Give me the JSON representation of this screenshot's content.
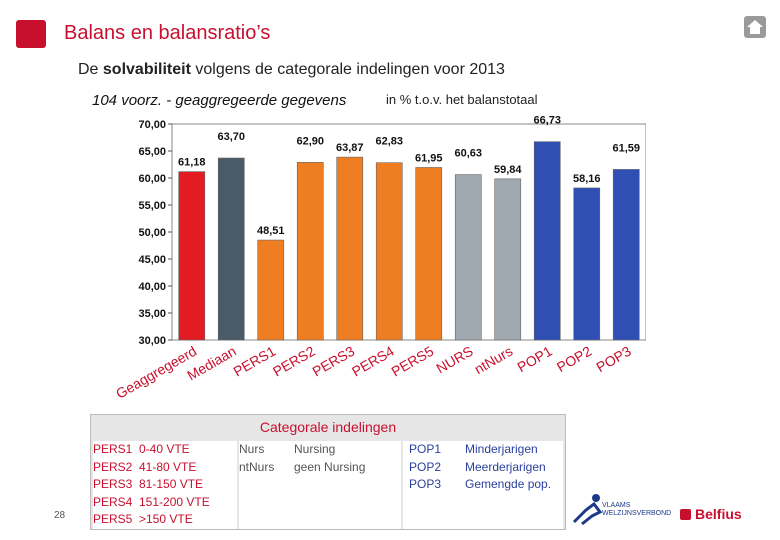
{
  "header": {
    "title": "Balans en balansratio’s",
    "subtitle_prefix": "De ",
    "subtitle_bold": "solvabiliteit",
    "subtitle_suffix": " volgens de categorale indelingen voor 2013"
  },
  "chart_data": {
    "type": "bar",
    "title": "104 voorz. - geaggregeerde gegevens",
    "unit_note": "in % t.o.v. het balanstotaal",
    "categories": [
      "Geaggregeerd",
      "Mediaan",
      "PERS1",
      "PERS2",
      "PERS3",
      "PERS4",
      "PERS5",
      "NURS",
      "ntNurs",
      "POP1",
      "POP2",
      "POP3"
    ],
    "values": [
      61.18,
      63.7,
      48.51,
      62.9,
      63.87,
      62.83,
      61.95,
      60.63,
      59.84,
      66.73,
      58.16,
      61.59
    ],
    "value_labels": [
      "61,18",
      "63,70",
      "48,51",
      "62,90",
      "63,87",
      "62,83",
      "61,95",
      "60,63",
      "59,84",
      "66,73",
      "58,16",
      "61,59"
    ],
    "bar_colors": [
      "#e31b23",
      "#4a5a66",
      "#ef7d22",
      "#ef7d22",
      "#ef7d22",
      "#ef7d22",
      "#ef7d22",
      "#a0a8b0",
      "#a0a8b0",
      "#2f4fb5",
      "#2f4fb5",
      "#2f4fb5"
    ],
    "ylim": [
      30,
      70
    ],
    "yticks": [
      30,
      35,
      40,
      45,
      50,
      55,
      60,
      65,
      70
    ],
    "ytick_labels": [
      "30,00",
      "35,00",
      "40,00",
      "45,00",
      "50,00",
      "55,00",
      "60,00",
      "65,00",
      "70,00"
    ],
    "xlabel": "",
    "ylabel": "",
    "grid": false
  },
  "legend": {
    "title": "Categorale indelingen",
    "pers": [
      {
        "code": "PERS1",
        "desc": "0-40 VTE"
      },
      {
        "code": "PERS2",
        "desc": "41-80 VTE"
      },
      {
        "code": "PERS3",
        "desc": "81-150 VTE"
      },
      {
        "code": "PERS4",
        "desc": "151-200 VTE"
      },
      {
        "code": "PERS5",
        "desc": ">150 VTE"
      }
    ],
    "nurs": [
      {
        "code": "Nurs",
        "desc": "Nursing"
      },
      {
        "code": "ntNurs",
        "desc": "geen Nursing"
      }
    ],
    "pop": [
      {
        "code": "POP1",
        "desc": "Minderjarigen"
      },
      {
        "code": "POP2",
        "desc": "Meerderjarigen"
      },
      {
        "code": "POP3",
        "desc": "Gemengde pop."
      }
    ]
  },
  "footer": {
    "page_number": "28",
    "vlaams_line1": "VLAAMS",
    "vlaams_line2": "WELZIJNSVERBOND",
    "brand": "Belfius"
  },
  "colors": {
    "brand_red": "#c8102e",
    "orange": "#ef7d22",
    "slate": "#4a5a66",
    "gray": "#a0a8b0",
    "blue": "#2f4fb5"
  }
}
